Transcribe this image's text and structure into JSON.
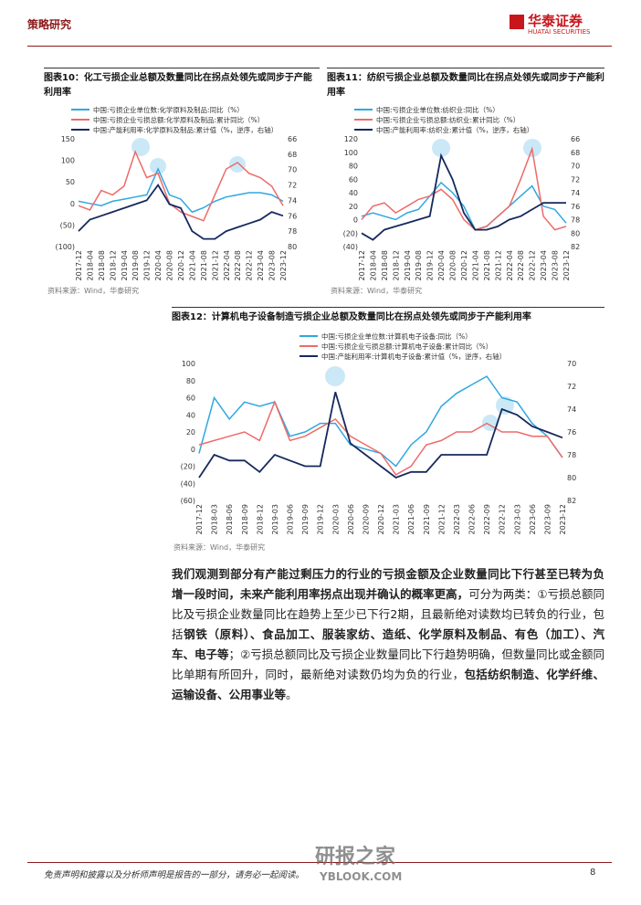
{
  "header": {
    "section": "策略研究",
    "logo_cn": "华泰证券",
    "logo_en": "HUATAI SECURITIES"
  },
  "chart_data": [
    {
      "type": "line",
      "label": "图表10：",
      "title": "化工亏损企业总额及数量同比在拐点处领先或同步于产能利用率",
      "categories": [
        "2017-12",
        "2018-04",
        "2018-08",
        "2018-12",
        "2019-04",
        "2019-08",
        "2019-12",
        "2020-04",
        "2020-08",
        "2020-12",
        "2021-04",
        "2021-08",
        "2021-12",
        "2022-04",
        "2022-08",
        "2022-12",
        "2023-04",
        "2023-08",
        "2023-12"
      ],
      "series": [
        {
          "name": "中国:亏损企业单位数:化学原料及制品:同比（%）",
          "color": "#2ea8e0",
          "values": [
            5,
            0,
            -5,
            5,
            10,
            15,
            20,
            80,
            20,
            10,
            -20,
            -10,
            5,
            15,
            20,
            25,
            25,
            20,
            5
          ]
        },
        {
          "name": "中国:亏损企业亏损总额:化学原料及制品:累计同比（%）",
          "color": "#ee6a6a",
          "values": [
            -5,
            -15,
            30,
            20,
            40,
            120,
            60,
            70,
            0,
            -20,
            -30,
            -40,
            20,
            80,
            95,
            70,
            60,
            40,
            -5
          ]
        },
        {
          "name": "中国:产能利用率:化学原料及制品:累计值（%，逆序，右轴）",
          "color": "#16295e",
          "axis": "y2",
          "values": [
            78,
            76.5,
            76,
            75.5,
            75,
            74.5,
            74,
            72,
            74.5,
            75,
            78,
            79,
            79,
            78,
            77.5,
            77,
            76.5,
            75.5,
            76
          ]
        }
      ],
      "ylim": [
        -100,
        150
      ],
      "yticks": [
        {
          "value": -100,
          "label": "(100)"
        },
        {
          "value": -50,
          "label": "(50)"
        },
        0,
        50,
        100,
        150
      ],
      "y2lim": [
        80,
        66
      ],
      "y2ticks": [
        66,
        68,
        70,
        72,
        74,
        76,
        78,
        80
      ],
      "source": "资料来源：Wind，华泰研究"
    },
    {
      "type": "line",
      "label": "图表11：",
      "title": "纺织亏损企业总额及数量同比在拐点处领先或同步于产能利用率",
      "categories": [
        "2017-12",
        "2018-04",
        "2018-08",
        "2018-12",
        "2019-04",
        "2019-08",
        "2019-12",
        "2020-04",
        "2020-08",
        "2020-12",
        "2021-04",
        "2021-08",
        "2021-12",
        "2022-04",
        "2022-08",
        "2022-12",
        "2023-04",
        "2023-08",
        "2023-12"
      ],
      "series": [
        {
          "name": "中国:亏损企业单位数:纺织业:同比（%）",
          "color": "#2ea8e0",
          "values": [
            5,
            10,
            5,
            0,
            10,
            15,
            35,
            55,
            40,
            20,
            -15,
            -10,
            5,
            20,
            35,
            50,
            20,
            15,
            -5
          ]
        },
        {
          "name": "中国:亏损企业亏损总额:纺织业:累计同比（%）",
          "color": "#ee6a6a",
          "values": [
            0,
            20,
            25,
            10,
            20,
            30,
            35,
            45,
            30,
            0,
            -15,
            -10,
            5,
            20,
            60,
            105,
            5,
            -15,
            -10
          ]
        },
        {
          "name": "中国:产能利用率:纺织业:累计值（%，逆序，右轴）",
          "color": "#16295e",
          "axis": "y2",
          "values": [
            80,
            81,
            79.5,
            79,
            78.5,
            78,
            77.5,
            68.5,
            72,
            77,
            79.5,
            79.5,
            79,
            78,
            77.5,
            76.5,
            75.5,
            75.5,
            75.5
          ]
        }
      ],
      "ylim": [
        -40,
        120
      ],
      "yticks": [
        {
          "value": -40,
          "label": "(40)"
        },
        {
          "value": -20,
          "label": "(20)"
        },
        0,
        20,
        40,
        60,
        80,
        100,
        120
      ],
      "y2lim": [
        82,
        66
      ],
      "y2ticks": [
        66,
        68,
        70,
        72,
        74,
        76,
        78,
        80,
        82
      ],
      "source": "资料来源：Wind，华泰研究"
    },
    {
      "type": "line",
      "label": "图表12：",
      "title": "计算机电子设备制造亏损企业总额及数量同比在拐点处领先或同步于产能利用率",
      "categories": [
        "2017-12",
        "2018-03",
        "2018-06",
        "2018-09",
        "2018-12",
        "2019-03",
        "2019-06",
        "2019-09",
        "2019-12",
        "2020-03",
        "2020-06",
        "2020-09",
        "2020-12",
        "2021-03",
        "2021-06",
        "2021-09",
        "2021-12",
        "2022-03",
        "2022-06",
        "2022-09",
        "2022-12",
        "2023-03",
        "2023-06",
        "2023-09",
        "2023-12"
      ],
      "series": [
        {
          "name": "中国:亏损企业单位数:计算机电子设备:同比（%）",
          "color": "#2ea8e0",
          "values": [
            -5,
            60,
            35,
            55,
            50,
            55,
            15,
            20,
            30,
            30,
            5,
            0,
            -5,
            -20,
            5,
            20,
            50,
            65,
            75,
            85,
            60,
            55,
            30,
            15,
            -10
          ]
        },
        {
          "name": "中国:亏损企业亏损总额:计算机电子设备:累计同比（%）",
          "color": "#ee6a6a",
          "values": [
            5,
            10,
            15,
            20,
            10,
            55,
            10,
            15,
            25,
            35,
            15,
            5,
            -5,
            -30,
            -20,
            5,
            10,
            20,
            20,
            30,
            20,
            20,
            15,
            15,
            -10
          ]
        },
        {
          "name": "中国:产能利用率:计算机电子设备:累计值（%，逆序，右轴）",
          "color": "#16295e",
          "axis": "y2",
          "values": [
            80,
            78,
            78.5,
            78.5,
            79.5,
            78,
            78.5,
            79,
            79,
            72.5,
            77,
            78,
            79,
            80,
            79.5,
            79.5,
            78,
            78,
            78,
            78,
            74,
            74.5,
            75.5,
            76,
            76.5
          ]
        }
      ],
      "ylim": [
        -60,
        100
      ],
      "yticks": [
        {
          "value": -60,
          "label": "(60)"
        },
        {
          "value": -40,
          "label": "(40)"
        },
        {
          "value": -20,
          "label": "(20)"
        },
        0,
        20,
        40,
        60,
        80,
        100
      ],
      "y2lim": [
        82,
        70
      ],
      "y2ticks": [
        70,
        72,
        74,
        76,
        78,
        80,
        82
      ],
      "source": "资料来源：Wind，华泰研究"
    }
  ],
  "paragraph": [
    {
      "text": "我们观测到部分有产能过剩压力的行业的亏损金额及企业数量同比下行甚至已转为负增一段时间，未来产能利用率拐点出现并确认的概率更高，",
      "bold": true
    },
    {
      "text": "可分为两类：①亏损总额同比及亏损企业数量同比在趋势上至少已下行2期，且最新绝对读数均已转负的行业，包括",
      "bold": false
    },
    {
      "text": "钢铁（原料）、食品加工、服装家纺、造纸、化学原料及制品、有色（加工）、汽车、电子等",
      "bold": true
    },
    {
      "text": "；②亏损总额同比及亏损企业数量同比下行趋势明确，但数量同比或金额同比单期有所回升，同时，最新绝对读数仍均为负的行业，",
      "bold": false
    },
    {
      "text": "包括纺织制造、化学纤维、运输设备、公用事业等",
      "bold": true
    },
    {
      "text": "。",
      "bold": false
    }
  ],
  "footer": {
    "disclaimer": "免责声明和披露以及分析师声明是报告的一部分，请务必一起阅读。",
    "page": 8
  },
  "watermark": {
    "cn": "研报之家",
    "en": "YBLOOK.COM"
  }
}
